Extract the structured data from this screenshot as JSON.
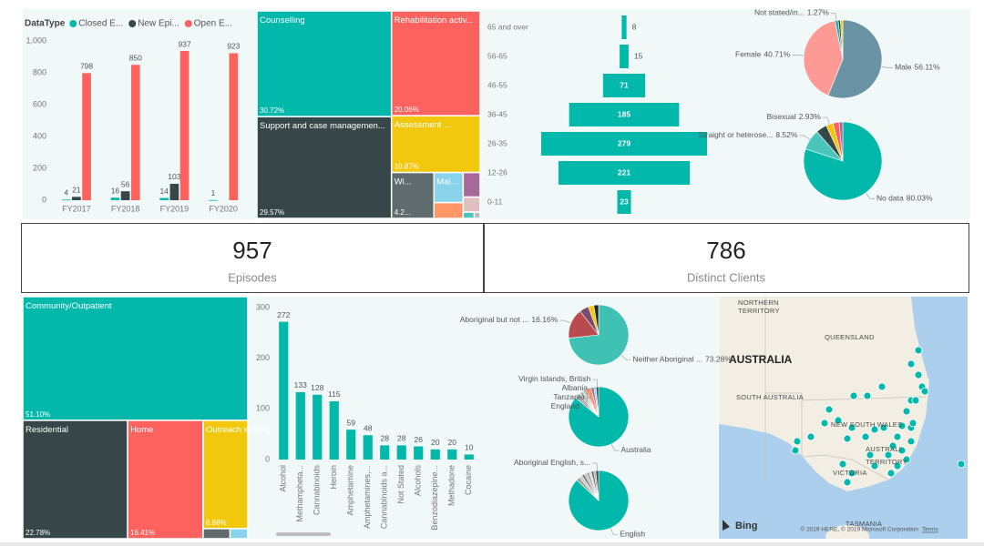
{
  "chart_data": [
    {
      "type": "bar",
      "legend_title": "DataType",
      "legend": "top-left",
      "categories": [
        "FY2017",
        "FY2018",
        "FY2019",
        "FY2020"
      ],
      "series": [
        {
          "name": "Closed E...",
          "color": "#01b8aa",
          "values": [
            4,
            16,
            14,
            1
          ]
        },
        {
          "name": "New Epi...",
          "color": "#374649",
          "values": [
            21,
            56,
            103,
            null
          ]
        },
        {
          "name": "Open E...",
          "color": "#fd625e",
          "values": [
            798,
            850,
            937,
            923
          ]
        }
      ],
      "ylim": [
        0,
        1000
      ],
      "yticks": [
        0,
        200,
        400,
        600,
        800,
        {
          "value": 1000,
          "label": "1,000"
        }
      ]
    },
    {
      "type": "treemap",
      "categories": [
        "Counselling",
        "Support and case managemen...",
        "Rehabilitation activ...",
        "Assessment ...",
        "Wi...",
        "Mai...",
        null,
        null,
        null,
        null,
        null
      ],
      "values": [
        30.72,
        29.57,
        20.06,
        10.87,
        4.2,
        1.9,
        1.0,
        0.9,
        0.55,
        0.15,
        0.08
      ],
      "value_labels": [
        "30.72%",
        "29.57%",
        "20.06%",
        "10.87%",
        "4.2...",
        null,
        null,
        null,
        null,
        null,
        null
      ],
      "colors": [
        "#01b8aa",
        "#374649",
        "#fd625e",
        "#f2c80f",
        "#5f6b6d",
        "#8ad4eb",
        "#fe9666",
        "#a66999",
        "#dfbfbf",
        "#4ac5bb",
        "#bbbbbb"
      ]
    },
    {
      "type": "funnel",
      "color": "#01b8aa",
      "categories": [
        "65 and over",
        "56-65",
        "46-55",
        "36-45",
        "26-35",
        "12-26",
        "0-11"
      ],
      "values": [
        8,
        15,
        71,
        185,
        279,
        221,
        23
      ]
    },
    {
      "type": "pie",
      "categories": [
        "Male",
        "Female",
        "Not stated/in...",
        null,
        null
      ],
      "values": [
        56.11,
        40.71,
        1.27,
        0.95,
        0.96
      ],
      "value_labels": [
        "56.11%",
        "40.71%",
        "1.27%",
        null,
        null
      ],
      "colors": [
        "#6a93a6",
        "#fd9a96",
        "#01b8aa",
        "#374649",
        "#f2c80f"
      ]
    },
    {
      "type": "pie",
      "categories": [
        "No data",
        "Straight or heterose...",
        null,
        "Bisexual",
        null,
        null
      ],
      "values": [
        80.03,
        8.52,
        4.5,
        2.93,
        2.5,
        1.52
      ],
      "value_labels": [
        "80.03%",
        "8.52%",
        null,
        "2.93%",
        null,
        null
      ],
      "colors": [
        "#01b8aa",
        "#4ac5bb",
        "#374649",
        "#f2c80f",
        "#fd625e",
        "#a66999"
      ]
    },
    {
      "type": "treemap",
      "categories": [
        "Community/Outpatient",
        "Residential",
        "Home",
        "Outreach setting",
        null,
        null
      ],
      "values": [
        51.1,
        22.78,
        16.41,
        8.88,
        0.5,
        0.33
      ],
      "value_labels": [
        "51.10%",
        "22.78%",
        "16.41%",
        "8.88%",
        null,
        null
      ],
      "colors": [
        "#01b8aa",
        "#374649",
        "#fd625e",
        "#f2c80f",
        "#5f6b6d",
        "#8ad4eb"
      ]
    },
    {
      "type": "bar",
      "color": "#01b8aa",
      "categories": [
        "Alcohol",
        "Methampheta...",
        "Cannabinoids",
        "Heroin",
        "Amphetamine",
        "Amphetamines,...",
        "Cannabinoids a...",
        "Not Stated",
        "Alcohols",
        "Benzodiazepine...",
        "Methadone",
        "Cocaine"
      ],
      "values": [
        272,
        133,
        128,
        115,
        59,
        48,
        28,
        28,
        26,
        20,
        20,
        10
      ],
      "ylim": [
        0,
        300
      ],
      "yticks": [
        0,
        100,
        200,
        300
      ]
    },
    {
      "type": "pie",
      "categories": [
        "Neither Aboriginal ...",
        "Aboriginal but not ...",
        null,
        null,
        null
      ],
      "values": [
        73.28,
        16.16,
        5.0,
        3.0,
        2.56
      ],
      "value_labels": [
        "73.28%",
        "16.16%",
        null,
        null,
        null
      ],
      "colors": [
        "#3fc1b4",
        "#b94b4e",
        "#7b4c6e",
        "#f2c80f",
        "#252423"
      ]
    },
    {
      "type": "pie",
      "categories": [
        "Australia",
        null,
        null,
        null,
        null,
        null,
        null,
        null,
        "England",
        "Tanzania",
        "Albania",
        "Virgin Islands, British"
      ],
      "values": [
        86,
        1.5,
        1.2,
        1.0,
        0.9,
        0.8,
        0.8,
        0.7,
        3.0,
        1.5,
        1.3,
        1.3
      ],
      "colors": [
        "#01b8aa",
        "#a0a0a0",
        "#888888",
        "#c8c8c8",
        "#777777",
        "#bbbbbb",
        "#999999",
        "#666666",
        "#fe9666",
        "#a66999",
        "#8ad4eb",
        "#374649"
      ]
    },
    {
      "type": "pie",
      "categories": [
        "English",
        null,
        null,
        null,
        null,
        null,
        null,
        null,
        null,
        "Aboriginal English, s..."
      ],
      "values": [
        87,
        2.0,
        1.6,
        1.5,
        1.4,
        1.3,
        1.2,
        1.3,
        1.2,
        1.5
      ],
      "colors": [
        "#01b8aa",
        "#a0a0a0",
        "#c8c8c8",
        "#777777",
        "#bbbbbb",
        "#999999",
        "#d9d9d9",
        "#666666",
        "#b0b0b0",
        "#374649"
      ]
    }
  ],
  "cards": [
    {
      "value": 957,
      "label": "Episodes"
    },
    {
      "value": 786,
      "label": "Distinct Clients"
    }
  ],
  "map": {
    "labels": [
      "NORTHERN",
      "TERRITORY",
      "QUEENSLAND",
      "AUSTRALIA",
      "SOUTH AUSTRALIA",
      "NEW SOUTH WALES",
      "AUSTRALI",
      "TERRITORY",
      "VICTORIA",
      "TASMANIA"
    ],
    "logo": "Bing",
    "copyright": "© 2019 HERE, © 2019 Microsoft Corporation",
    "terms": "Terms"
  }
}
